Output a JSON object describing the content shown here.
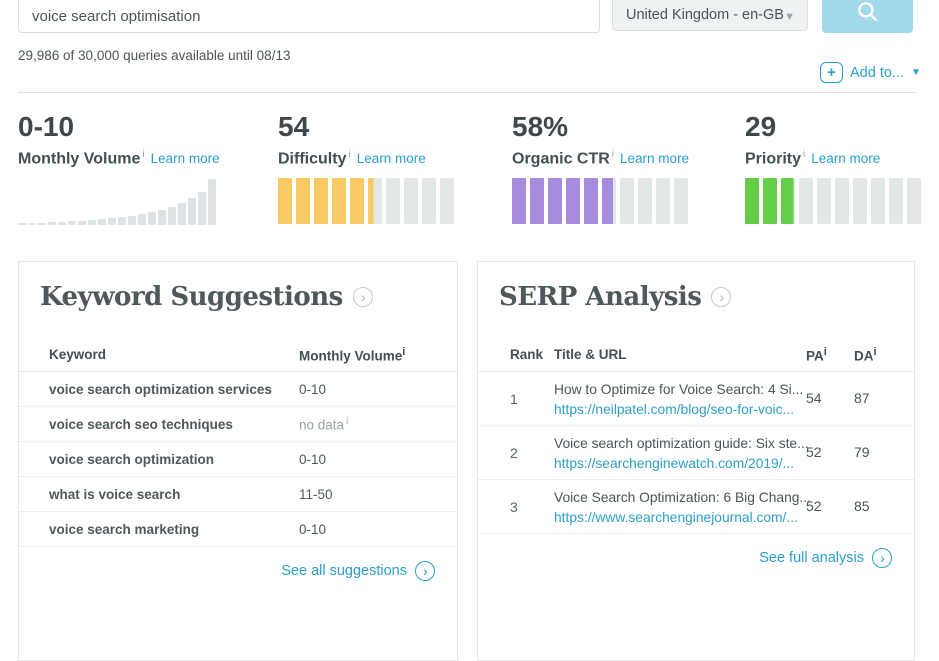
{
  "search": {
    "query": "voice search optimisation",
    "locale": "United Kingdom - en-GB",
    "queries_note": "29,986 of 30,000 queries available until 08/13",
    "add_to_label": "Add to..."
  },
  "colors": {
    "link_blue": "#2b9fcb",
    "search_button": "#a3d9ec",
    "difficulty_yellow": "#f9c963",
    "ctr_purple": "#a78cdb",
    "priority_green": "#65ce49",
    "gauge_gray": "#e2e7e8",
    "score_fill": "#4cc2d4",
    "score_track": "#c9eef4"
  },
  "metrics": {
    "cards": [
      {
        "value": "0-10",
        "label": "Monthly Volume",
        "learn_more": "Learn more",
        "type": "histogram",
        "bars": [
          2,
          2,
          2,
          3,
          3,
          4,
          4,
          5,
          6,
          7,
          8,
          9,
          11,
          13,
          15,
          18,
          22,
          27,
          33,
          46
        ]
      },
      {
        "value": "54",
        "label": "Difficulty",
        "learn_more": "Learn more",
        "type": "gauge",
        "percent": 54,
        "color": "#f9c963"
      },
      {
        "value": "58%",
        "label": "Organic CTR",
        "learn_more": "Learn more",
        "type": "gauge",
        "percent": 58,
        "color": "#a78cdb"
      },
      {
        "value": "29",
        "label": "Priority",
        "learn_more": "Learn more",
        "type": "gauge",
        "percent": 29,
        "color": "#65ce49"
      }
    ]
  },
  "keyword_suggestions": {
    "title": "Keyword Suggestions",
    "columns": {
      "keyword": "Keyword",
      "volume": "Monthly Volume"
    },
    "rows": [
      {
        "keyword": "voice search optimization services",
        "volume": "0-10"
      },
      {
        "keyword": "voice search seo techniques",
        "volume": "no data"
      },
      {
        "keyword": "voice search optimization",
        "volume": "0-10"
      },
      {
        "keyword": "what is voice search",
        "volume": "11-50"
      },
      {
        "keyword": "voice search marketing",
        "volume": "0-10"
      }
    ],
    "footer": "See all suggestions"
  },
  "serp_analysis": {
    "title": "SERP Analysis",
    "columns": {
      "rank": "Rank",
      "title_url": "Title & URL",
      "pa": "PA",
      "da": "DA"
    },
    "rows": [
      {
        "rank": "1",
        "title": "How to Optimize for Voice Search: 4 Si...",
        "url": "https://neilpatel.com/blog/seo-for-voic...",
        "pa": 54,
        "da": 87
      },
      {
        "rank": "2",
        "title": "Voice search optimization guide: Six ste...",
        "url": "https://searchenginewatch.com/2019/...",
        "pa": 52,
        "da": 79
      },
      {
        "rank": "3",
        "title": "Voice Search Optimization: 6 Big Chang...",
        "url": "https://www.searchenginejournal.com/...",
        "pa": 52,
        "da": 85
      }
    ],
    "footer": "See full analysis"
  }
}
